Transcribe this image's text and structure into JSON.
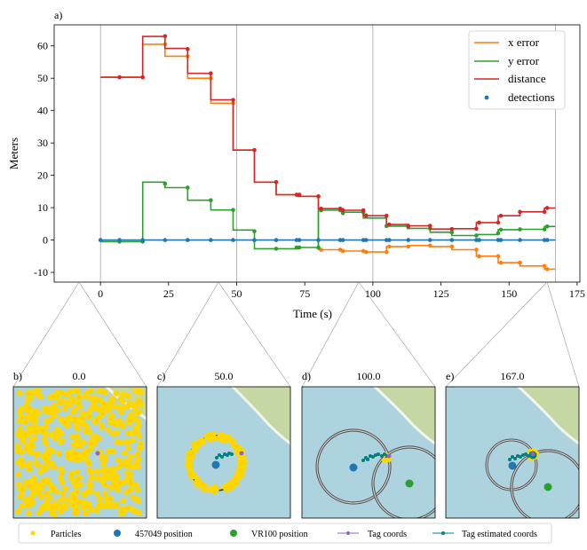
{
  "panel_labels": {
    "a": "a)",
    "b": "b)",
    "c": "c)",
    "d": "d)",
    "e": "e)"
  },
  "colors": {
    "x_error": "#ff7f0e",
    "y_error": "#2ca02c",
    "distance": "#d62728",
    "detections": "#1f77b4",
    "particles": "#ffd700",
    "pos_457049": "#1f77b4",
    "pos_VR100": "#2ca02c",
    "tag_coords": "#9467bd",
    "tag_est": "#008080",
    "water": "#add3df",
    "land": "#c5d8a4"
  },
  "chart_data": [
    {
      "type": "line",
      "xlabel": "Time (s)",
      "ylabel": "Meters",
      "xlim": [
        -17,
        176
      ],
      "ylim": [
        -13,
        66.5
      ],
      "xticks": [
        0,
        25,
        50,
        75,
        100,
        125,
        150,
        175
      ],
      "yticks": [
        -10,
        0,
        10,
        20,
        30,
        40,
        50,
        60
      ],
      "legend_position": "top-right",
      "legend": [
        "x error",
        "y error",
        "distance",
        "detections"
      ],
      "vlines": [
        0,
        50,
        100,
        167
      ],
      "series": [
        {
          "name": "x error",
          "step": [
            [
              0,
              50.3
            ],
            [
              15.5,
              50.3
            ],
            [
              15.5,
              60.5
            ],
            [
              23.7,
              60.5
            ],
            [
              23.7,
              56.8
            ],
            [
              32,
              56.8
            ],
            [
              32,
              50
            ],
            [
              40.5,
              50
            ],
            [
              40.5,
              42.3
            ],
            [
              48.7,
              42.3
            ],
            [
              48.7,
              27.8
            ],
            [
              56.5,
              27.8
            ],
            [
              56.5,
              17.9
            ],
            [
              64.5,
              17.9
            ],
            [
              64.5,
              14
            ],
            [
              72.5,
              14
            ],
            [
              72.5,
              13.5
            ],
            [
              80,
              13.5
            ],
            [
              80,
              -3
            ],
            [
              89,
              -3
            ],
            [
              89,
              -3.4
            ],
            [
              96.5,
              -3.4
            ],
            [
              96.5,
              -3.7
            ],
            [
              105,
              -3.7
            ],
            [
              105,
              -2
            ],
            [
              113,
              -2
            ],
            [
              113,
              -1.7
            ],
            [
              121,
              -1.7
            ],
            [
              121,
              -2
            ],
            [
              129,
              -2
            ],
            [
              129,
              -3
            ],
            [
              138,
              -3
            ],
            [
              138,
              -5
            ],
            [
              146,
              -5
            ],
            [
              146,
              -7
            ],
            [
              154,
              -7
            ],
            [
              154,
              -8
            ],
            [
              163,
              -8
            ],
            [
              163,
              -9
            ],
            [
              167,
              -9
            ]
          ],
          "markers": [
            [
              7,
              50.3
            ],
            [
              15.5,
              50.3
            ],
            [
              23.7,
              60.5
            ],
            [
              32,
              56.8
            ],
            [
              40.5,
              50
            ],
            [
              48.7,
              42.3
            ],
            [
              56.5,
              27.8
            ],
            [
              64.5,
              17.9
            ],
            [
              72,
              14
            ],
            [
              73,
              14
            ],
            [
              80,
              13.5
            ],
            [
              81,
              -3
            ],
            [
              88,
              -3
            ],
            [
              89,
              -3.4
            ],
            [
              96.5,
              -3.4
            ],
            [
              97.5,
              -3.7
            ],
            [
              105,
              -3.7
            ],
            [
              106,
              -2
            ],
            [
              113,
              -2
            ],
            [
              121,
              -1.7
            ],
            [
              129,
              -2
            ],
            [
              138,
              -3
            ],
            [
              139,
              -5
            ],
            [
              146,
              -5
            ],
            [
              147,
              -7
            ],
            [
              154,
              -7
            ],
            [
              163,
              -8
            ],
            [
              164,
              -9
            ]
          ]
        },
        {
          "name": "y error",
          "step": [
            [
              0,
              -0.5
            ],
            [
              15.5,
              -0.5
            ],
            [
              15.5,
              17.9
            ],
            [
              23.7,
              17.9
            ],
            [
              23.7,
              16.2
            ],
            [
              32,
              16.2
            ],
            [
              32,
              12.3
            ],
            [
              40.5,
              12.3
            ],
            [
              40.5,
              9.3
            ],
            [
              48.7,
              9.3
            ],
            [
              48.7,
              3.1
            ],
            [
              56.5,
              3.1
            ],
            [
              56.5,
              -2.7
            ],
            [
              64.5,
              -2.7
            ],
            [
              64.5,
              -2.7
            ],
            [
              72.5,
              -2.7
            ],
            [
              72.5,
              -2.3
            ],
            [
              80,
              -2.3
            ],
            [
              80,
              9.2
            ],
            [
              89,
              9.2
            ],
            [
              89,
              8.6
            ],
            [
              96.5,
              8.6
            ],
            [
              96.5,
              6.8
            ],
            [
              105,
              6.8
            ],
            [
              105,
              4.3
            ],
            [
              113,
              4.3
            ],
            [
              113,
              3.6
            ],
            [
              121,
              3.6
            ],
            [
              121,
              2.4
            ],
            [
              129,
              2.4
            ],
            [
              129,
              1.4
            ],
            [
              138,
              1.4
            ],
            [
              138,
              1.7
            ],
            [
              146,
              1.7
            ],
            [
              146,
              3.2
            ],
            [
              154,
              3.2
            ],
            [
              154,
              3.3
            ],
            [
              163,
              3.3
            ],
            [
              163,
              4.2
            ],
            [
              167,
              4.2
            ]
          ],
          "markers": [
            [
              7,
              -0.5
            ],
            [
              15.5,
              -0.5
            ],
            [
              23.7,
              17.4
            ],
            [
              32,
              16.2
            ],
            [
              40.5,
              12.3
            ],
            [
              48.7,
              9.3
            ],
            [
              56.5,
              2.7
            ],
            [
              64.5,
              -2.7
            ],
            [
              72,
              -2.3
            ],
            [
              73,
              -2.3
            ],
            [
              80,
              -2.3
            ],
            [
              81,
              9.2
            ],
            [
              88,
              9.2
            ],
            [
              89,
              8.3
            ],
            [
              96.5,
              8.6
            ],
            [
              97.5,
              7.6
            ],
            [
              105,
              4.3
            ],
            [
              113,
              3.9
            ],
            [
              121,
              3.6
            ],
            [
              129,
              2.4
            ],
            [
              138,
              1.4
            ],
            [
              146,
              2.1
            ],
            [
              147,
              3.2
            ],
            [
              154,
              3.3
            ],
            [
              163,
              3.3
            ],
            [
              164,
              4.2
            ]
          ]
        },
        {
          "name": "distance",
          "step": [
            [
              0,
              50.3
            ],
            [
              15.5,
              50.3
            ],
            [
              15.5,
              62.9
            ],
            [
              23.7,
              62.9
            ],
            [
              23.7,
              59.2
            ],
            [
              32,
              59.2
            ],
            [
              32,
              51.5
            ],
            [
              40.5,
              51.5
            ],
            [
              40.5,
              43.3
            ],
            [
              48.7,
              43.3
            ],
            [
              48.7,
              27.8
            ],
            [
              56.5,
              27.8
            ],
            [
              56.5,
              17.9
            ],
            [
              64.5,
              17.9
            ],
            [
              64.5,
              14
            ],
            [
              72.5,
              14
            ],
            [
              72.5,
              13.5
            ],
            [
              80,
              13.5
            ],
            [
              80,
              9.7
            ],
            [
              89,
              9.7
            ],
            [
              89,
              9.2
            ],
            [
              96.5,
              9.2
            ],
            [
              96.5,
              7.5
            ],
            [
              105,
              7.5
            ],
            [
              105,
              4.8
            ],
            [
              113,
              4.8
            ],
            [
              113,
              4.4
            ],
            [
              121,
              4.4
            ],
            [
              121,
              3.4
            ],
            [
              129,
              3.4
            ],
            [
              129,
              3.5
            ],
            [
              138,
              3.5
            ],
            [
              138,
              5.4
            ],
            [
              146,
              5.4
            ],
            [
              146,
              7.5
            ],
            [
              154,
              7.5
            ],
            [
              154,
              8.7
            ],
            [
              163,
              8.7
            ],
            [
              163,
              9.9
            ],
            [
              167,
              9.9
            ]
          ],
          "markers": [
            [
              7,
              50.3
            ],
            [
              15.5,
              50.3
            ],
            [
              23.7,
              63
            ],
            [
              32,
              59
            ],
            [
              40.5,
              51.5
            ],
            [
              48.7,
              43.3
            ],
            [
              56.5,
              27.8
            ],
            [
              64.5,
              17.9
            ],
            [
              72,
              14
            ],
            [
              73,
              14
            ],
            [
              80,
              13.5
            ],
            [
              81,
              9.7
            ],
            [
              88,
              9.7
            ],
            [
              89,
              9.2
            ],
            [
              96.5,
              9.2
            ],
            [
              97.5,
              7.5
            ],
            [
              105,
              7.5
            ],
            [
              106,
              4.8
            ],
            [
              113,
              4.4
            ],
            [
              121,
              4.4
            ],
            [
              129,
              3.4
            ],
            [
              138,
              3.5
            ],
            [
              139,
              5.4
            ],
            [
              146,
              5.4
            ],
            [
              147,
              7.5
            ],
            [
              154,
              8.7
            ],
            [
              163,
              8.7
            ],
            [
              164,
              9.9
            ]
          ]
        },
        {
          "name": "detections",
          "y": 0,
          "x": [
            0,
            7,
            15.5,
            23.7,
            32,
            40.5,
            48.7,
            56.5,
            64.5,
            72,
            73,
            80,
            88,
            89,
            96.5,
            97.5,
            105,
            106,
            113,
            121,
            129,
            138,
            139,
            146,
            147,
            154,
            163,
            164
          ]
        }
      ]
    },
    {
      "type": "scatter",
      "title": "0.0",
      "series": [
        {
          "name": "Particles"
        },
        {
          "name": "Tag coords"
        }
      ]
    },
    {
      "type": "scatter",
      "title": "50.0",
      "series": [
        {
          "name": "Particles"
        },
        {
          "name": "457049 position"
        },
        {
          "name": "Tag coords"
        },
        {
          "name": "Tag estimated coords"
        }
      ]
    },
    {
      "type": "scatter",
      "title": "100.0",
      "series": [
        {
          "name": "457049 position"
        },
        {
          "name": "VR100 position"
        },
        {
          "name": "Tag coords"
        },
        {
          "name": "Tag estimated coords"
        }
      ]
    },
    {
      "type": "scatter",
      "title": "167.0",
      "series": [
        {
          "name": "Particles"
        },
        {
          "name": "457049 position"
        },
        {
          "name": "VR100 position"
        },
        {
          "name": "Tag coords"
        },
        {
          "name": "Tag estimated coords"
        }
      ]
    }
  ],
  "bottom_legend": [
    "Particles",
    "457049 position",
    "VR100 position",
    "Tag coords",
    "Tag estimated coords"
  ]
}
